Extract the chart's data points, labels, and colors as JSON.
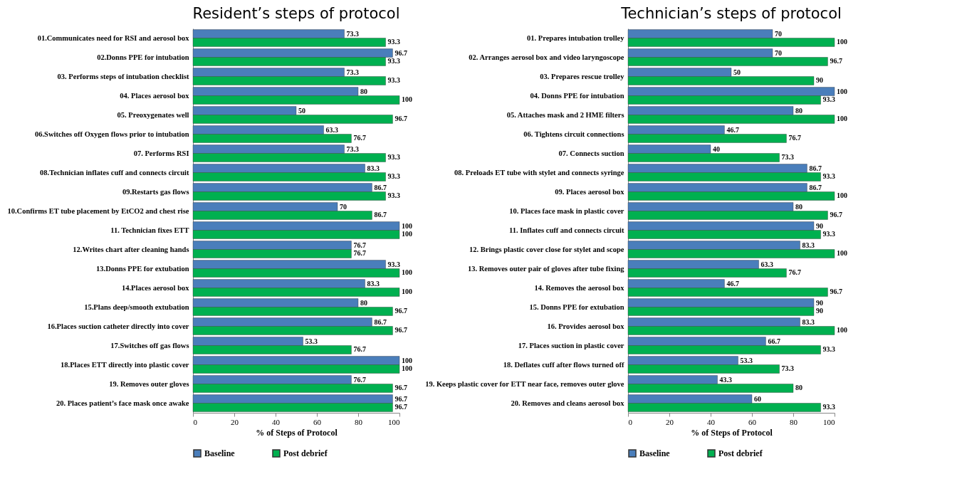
{
  "chart_data": [
    {
      "type": "bar",
      "orientation": "horizontal",
      "title": "Resident’s steps of protocol",
      "xlabel": "% of Steps of Protocol",
      "categories": [
        "01.Communicates need for RSI and aerosol box",
        "02.Donns PPE for intubation",
        "03. Performs steps of intubation checklist",
        "04. Places aerosol box",
        "05. Preoxygenates well",
        "06.Switches off Oxygen flows prior to intubation",
        "07. Performs RSI",
        "08.Technician inflates cuff and connects circuit",
        "09.Restarts gas flows",
        "10.Confirms ET tube placement by EtCO2 and chest rise",
        "11. Technician fixes ETT",
        "12.Writes chart after cleaning hands",
        "13.Donns PPE for extubation",
        "14.Places aerosol box",
        "15.Plans deep/smooth extubation",
        "16.Places suction catheter directly into cover",
        "17.Switches off gas flows",
        "18.Places ETT directly into plastic cover",
        "19. Removes outer gloves",
        "20. Places patient’s face mask once awake"
      ],
      "series": [
        {
          "name": "Baseline",
          "color": "#4a7ebb",
          "values": [
            73.3,
            96.7,
            73.3,
            80,
            50,
            63.3,
            73.3,
            83.3,
            86.7,
            70,
            100,
            76.7,
            93.3,
            83.3,
            80,
            86.7,
            53.3,
            100,
            76.7,
            96.7
          ]
        },
        {
          "name": "Post debrief",
          "color": "#00b050",
          "values": [
            93.3,
            93.3,
            93.3,
            100,
            96.7,
            76.7,
            93.3,
            93.3,
            93.3,
            86.7,
            100,
            76.7,
            100,
            100,
            96.7,
            96.7,
            76.7,
            100,
            96.7,
            96.7
          ]
        }
      ],
      "xlim": [
        0,
        100
      ],
      "xticks": [
        0,
        20,
        40,
        60,
        80,
        100
      ],
      "grid": false,
      "legend": "bottom left",
      "data_labels": true
    },
    {
      "type": "bar",
      "orientation": "horizontal",
      "title": "Technician’s steps of protocol",
      "xlabel": "% of Steps of Protocol",
      "categories": [
        "01. Prepares intubation trolley",
        "02. Arranges aerosol box and video laryngoscope",
        "03. Prepares rescue trolley",
        "04. Donns PPE for intubation",
        "05. Attaches mask and 2 HME filters",
        "06. Tightens circuit connections",
        "07. Connects suction",
        "08. Preloads ET tube with stylet and connects syringe",
        "09. Places aerosol box",
        "10. Places face mask in plastic cover",
        "11. Inflates cuff and connects circuit",
        "12. Brings plastic cover close for stylet and scope",
        "13. Removes outer pair of gloves after tube fixing",
        "14. Removes the aerosol box",
        "15. Donns PPE for extubation",
        "16. Provides aerosol box",
        "17. Places suction in plastic cover",
        "18. Deflates cuff after flows turned off",
        "19. Keeps plastic cover for ETT near face, removes outer glove",
        "20. Removes and cleans aerosol box"
      ],
      "series": [
        {
          "name": "Baseline",
          "color": "#4a7ebb",
          "values": [
            70,
            70,
            50,
            100,
            80,
            46.7,
            40,
            86.7,
            86.7,
            80,
            90,
            83.3,
            63.3,
            46.7,
            90,
            83.3,
            66.7,
            53.3,
            43.3,
            60
          ]
        },
        {
          "name": "Post debrief",
          "color": "#00b050",
          "values": [
            100,
            96.7,
            90,
            93.3,
            100,
            76.7,
            73.3,
            93.3,
            100,
            96.7,
            93.3,
            100,
            76.7,
            96.7,
            90,
            100,
            93.3,
            73.3,
            80,
            93.3
          ]
        }
      ],
      "xlim": [
        0,
        100
      ],
      "xticks": [
        0,
        20,
        40,
        60,
        80,
        100
      ],
      "grid": false,
      "legend": "bottom left",
      "data_labels": true
    }
  ]
}
